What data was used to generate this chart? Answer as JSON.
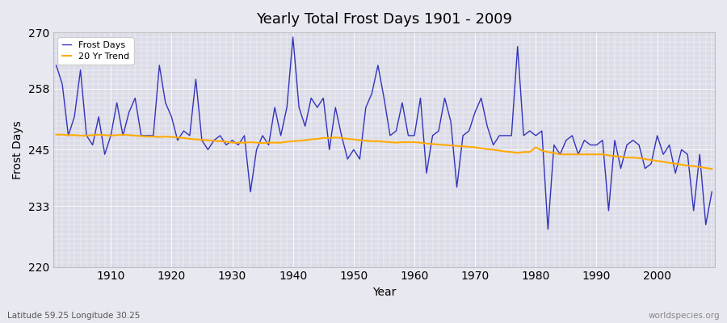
{
  "title": "Yearly Total Frost Days 1901 - 2009",
  "xlabel": "Year",
  "ylabel": "Frost Days",
  "lat_lon_label": "Latitude 59.25 Longitude 30.25",
  "watermark": "worldspecies.org",
  "ylim": [
    220,
    270
  ],
  "yticks": [
    220,
    233,
    245,
    258,
    270
  ],
  "years": [
    1901,
    1902,
    1903,
    1904,
    1905,
    1906,
    1907,
    1908,
    1909,
    1910,
    1911,
    1912,
    1913,
    1914,
    1915,
    1916,
    1917,
    1918,
    1919,
    1920,
    1921,
    1922,
    1923,
    1924,
    1925,
    1926,
    1927,
    1928,
    1929,
    1930,
    1931,
    1932,
    1933,
    1934,
    1935,
    1936,
    1937,
    1938,
    1939,
    1940,
    1941,
    1942,
    1943,
    1944,
    1945,
    1946,
    1947,
    1948,
    1949,
    1950,
    1951,
    1952,
    1953,
    1954,
    1955,
    1956,
    1957,
    1958,
    1959,
    1960,
    1961,
    1962,
    1963,
    1964,
    1965,
    1966,
    1967,
    1968,
    1969,
    1970,
    1971,
    1972,
    1973,
    1974,
    1975,
    1976,
    1977,
    1978,
    1979,
    1980,
    1981,
    1982,
    1983,
    1984,
    1985,
    1986,
    1987,
    1988,
    1989,
    1990,
    1991,
    1992,
    1993,
    1994,
    1995,
    1996,
    1997,
    1998,
    1999,
    2000,
    2001,
    2002,
    2003,
    2004,
    2005,
    2006,
    2007,
    2008,
    2009
  ],
  "frost_days": [
    263,
    259,
    248,
    252,
    262,
    248,
    246,
    252,
    244,
    248,
    255,
    248,
    253,
    256,
    248,
    248,
    248,
    263,
    255,
    252,
    247,
    249,
    248,
    260,
    247,
    245,
    247,
    248,
    246,
    247,
    246,
    248,
    236,
    245,
    248,
    246,
    254,
    248,
    254,
    269,
    254,
    250,
    256,
    254,
    256,
    245,
    254,
    248,
    243,
    245,
    243,
    254,
    257,
    263,
    256,
    248,
    249,
    255,
    248,
    248,
    256,
    240,
    248,
    249,
    256,
    251,
    237,
    248,
    249,
    253,
    256,
    250,
    246,
    248,
    248,
    248,
    267,
    248,
    249,
    248,
    249,
    228,
    246,
    244,
    247,
    248,
    244,
    247,
    246,
    246,
    247,
    232,
    247,
    241,
    246,
    247,
    246,
    241,
    242,
    248,
    244,
    246,
    240,
    245,
    244,
    232,
    244,
    229,
    236
  ],
  "trend": [
    248.2,
    248.2,
    248.1,
    248.1,
    248.0,
    248.0,
    248.1,
    248.2,
    248.1,
    248.0,
    248.1,
    248.2,
    248.1,
    248.0,
    247.9,
    247.8,
    247.8,
    247.7,
    247.8,
    247.7,
    247.6,
    247.5,
    247.3,
    247.2,
    247.1,
    247.0,
    246.9,
    246.8,
    246.7,
    246.5,
    246.5,
    246.5,
    246.6,
    246.5,
    246.4,
    246.5,
    246.5,
    246.5,
    246.7,
    246.8,
    246.9,
    247.0,
    247.2,
    247.3,
    247.5,
    247.5,
    247.6,
    247.5,
    247.3,
    247.2,
    247.0,
    246.9,
    246.8,
    246.8,
    246.7,
    246.6,
    246.5,
    246.6,
    246.6,
    246.6,
    246.5,
    246.3,
    246.2,
    246.1,
    246.0,
    245.9,
    245.8,
    245.7,
    245.6,
    245.5,
    245.3,
    245.1,
    245.0,
    244.8,
    244.6,
    244.5,
    244.3,
    244.5,
    244.5,
    245.5,
    244.8,
    244.5,
    244.3,
    244.0,
    244.0,
    244.0,
    244.0,
    244.0,
    244.0,
    244.0,
    244.0,
    243.8,
    243.6,
    243.5,
    243.3,
    243.3,
    243.2,
    243.0,
    242.8,
    242.6,
    242.4,
    242.2,
    242.0,
    241.8,
    241.6,
    241.5,
    241.3,
    241.1,
    240.9
  ],
  "line_color": "#3333bb",
  "trend_color": "#ffaa00",
  "bg_color": "#e8e8f0",
  "plot_bg_color": "#dcdce8",
  "grid_color": "#ffffff",
  "legend_labels": [
    "Frost Days",
    "20 Yr Trend"
  ]
}
